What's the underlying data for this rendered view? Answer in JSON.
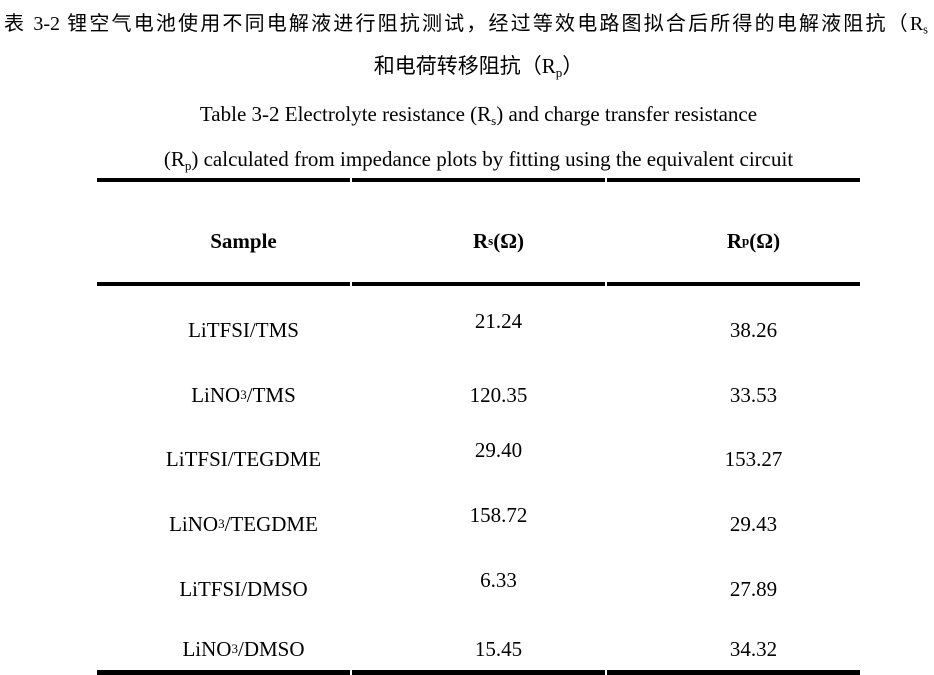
{
  "page": {
    "background": "#ffffff",
    "text_color": "#000000",
    "rule_color": "#000000"
  },
  "caption_zh": {
    "line1_parts": [
      {
        "t": "表 3-2 锂空气电池使用不同电解液进行阻抗测试，经过等效电路图拟合后所得的电解液阻抗（R"
      },
      {
        "t": "s",
        "sub": true
      }
    ],
    "line2_parts": [
      {
        "t": "和电荷转移阻抗（R"
      },
      {
        "t": "p",
        "sub": true
      },
      {
        "t": "）"
      }
    ]
  },
  "caption_en": {
    "line1_parts": [
      {
        "t": "Table 3-2 Electrolyte resistance (R"
      },
      {
        "t": "s",
        "sub": true
      },
      {
        "t": ") and charge transfer resistance"
      }
    ],
    "line2_parts": [
      {
        "t": "(R"
      },
      {
        "t": "p",
        "sub": true
      },
      {
        "t": ") calculated from impedance plots by fitting using the equivalent circuit"
      }
    ]
  },
  "table": {
    "unit": "Ω",
    "columns": [
      {
        "parts": [
          {
            "t": "Sample"
          }
        ]
      },
      {
        "parts": [
          {
            "t": "R"
          },
          {
            "t": "s",
            "sub": true
          },
          {
            "t": "(Ω)"
          }
        ]
      },
      {
        "parts": [
          {
            "t": "R"
          },
          {
            "t": "p",
            "sub": true
          },
          {
            "t": "(Ω)"
          }
        ]
      }
    ],
    "rows": [
      {
        "sample_parts": [
          {
            "t": "LiTFSI/TMS"
          }
        ],
        "rs": "21.24",
        "rp": "38.26"
      },
      {
        "sample_parts": [
          {
            "t": "LiNO"
          },
          {
            "t": "3",
            "sub": true
          },
          {
            "t": "/TMS"
          }
        ],
        "rs": "120.35",
        "rp": "33.53"
      },
      {
        "sample_parts": [
          {
            "t": "LiTFSI/TEGDME"
          }
        ],
        "rs": "29.40",
        "rp": "153.27"
      },
      {
        "sample_parts": [
          {
            "t": "LiNO"
          },
          {
            "t": "3",
            "sub": true
          },
          {
            "t": "/TEGDME"
          }
        ],
        "rs": "158.72",
        "rp": "29.43"
      },
      {
        "sample_parts": [
          {
            "t": "LiTFSI/DMSO"
          }
        ],
        "rs": "6.33",
        "rp": "27.89"
      },
      {
        "sample_parts": [
          {
            "t": "LiNO"
          },
          {
            "t": "3",
            "sub": true
          },
          {
            "t": "/DMSO"
          }
        ],
        "rs": "15.45",
        "rp": "34.32"
      }
    ]
  },
  "chart_data": {
    "type": "table",
    "title_zh": "表 3-2 锂空气电池使用不同电解液进行阻抗测试，经过等效电路图拟合后所得的电解液阻抗（Rs 和电荷转移阻抗（Rp）",
    "title_en": "Table 3-2 Electrolyte resistance (Rs) and charge transfer resistance (Rp) calculated from impedance plots by fitting using the equivalent circuit",
    "columns": [
      "Sample",
      "Rs(Ω)",
      "Rp(Ω)"
    ],
    "rows": [
      [
        "LiTFSI/TMS",
        21.24,
        38.26
      ],
      [
        "LiNO3/TMS",
        120.35,
        33.53
      ],
      [
        "LiTFSI/TEGDME",
        29.4,
        153.27
      ],
      [
        "LiNO3/TEGDME",
        158.72,
        29.43
      ],
      [
        "LiTFSI/DMSO",
        6.33,
        27.89
      ],
      [
        "LiNO3/DMSO",
        15.45,
        34.32
      ]
    ]
  }
}
